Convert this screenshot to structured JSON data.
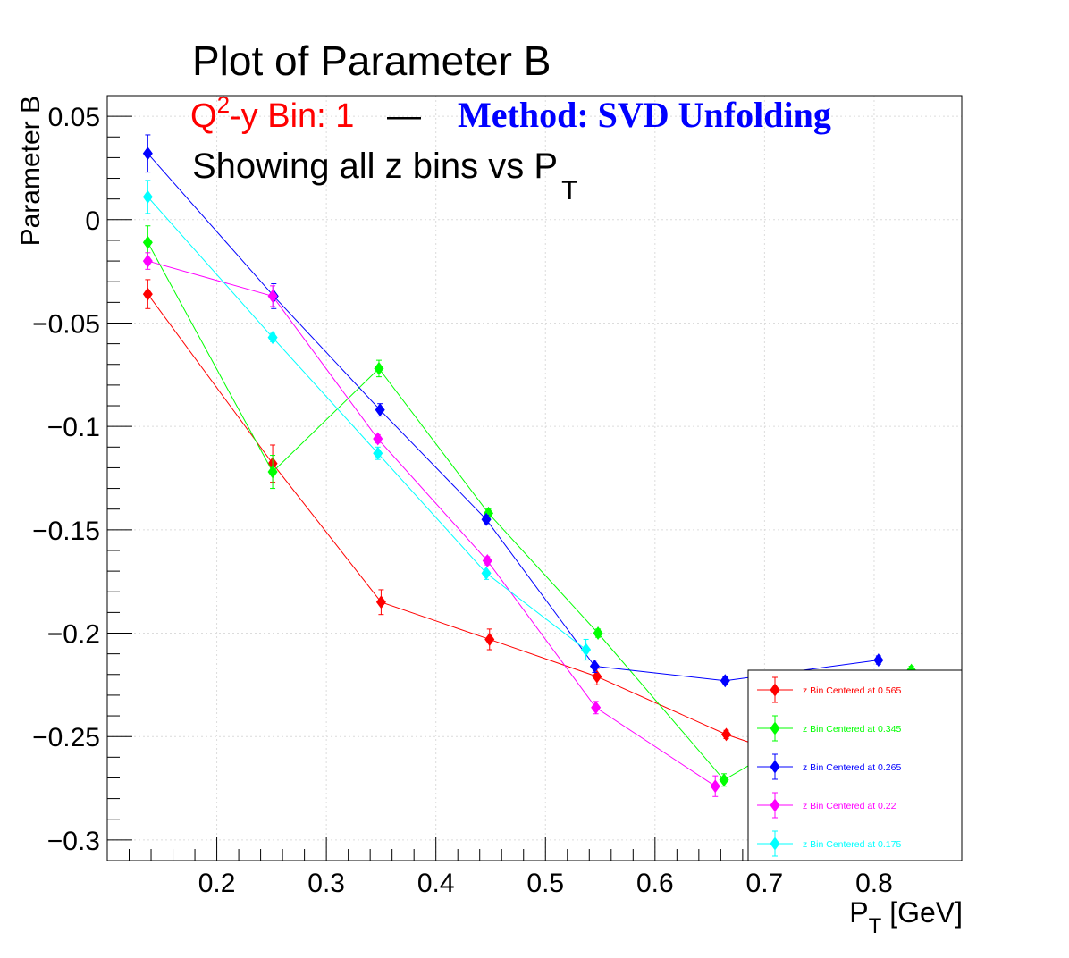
{
  "chart_data": {
    "type": "line",
    "title": "Plot of Parameter B",
    "subtitle_bin_prefix": "Q",
    "subtitle_bin_sup": "2",
    "subtitle_bin_rest": "-y Bin: 1",
    "subtitle_separator": "—",
    "subtitle_method": "Method: SVD Unfolding",
    "subtitle_showing": "Showing all z bins vs P",
    "subtitle_showing_sub": "T",
    "xlabel_main": "P",
    "xlabel_sub": "T",
    "xlabel_unit": " [GeV]",
    "ylabel": "Parameter B",
    "xlim": [
      0.1,
      0.88
    ],
    "ylim": [
      -0.31,
      0.06
    ],
    "xticks": [
      0.2,
      0.3,
      0.4,
      0.5,
      0.6,
      0.7,
      0.8
    ],
    "xtick_labels": [
      "0.2",
      "0.3",
      "0.4",
      "0.5",
      "0.6",
      "0.7",
      "0.8"
    ],
    "yticks": [
      0.05,
      0,
      -0.05,
      -0.1,
      -0.15,
      -0.2,
      -0.25,
      -0.3
    ],
    "ytick_labels": [
      "0.05",
      "0",
      "−0.05",
      "−0.1",
      "−0.15",
      "−0.2",
      "−0.25",
      "−0.3"
    ],
    "grid": true,
    "legend_position": "bottom-right",
    "series": [
      {
        "name": "z Bin Centered at 0.565",
        "color": "#ff0000",
        "x": [
          0.137,
          0.251,
          0.35,
          0.449,
          0.547,
          0.665,
          0.804
        ],
        "y": [
          -0.036,
          -0.118,
          -0.185,
          -0.203,
          -0.221,
          -0.249,
          -0.274
        ],
        "err": [
          0.007,
          0.009,
          0.006,
          0.005,
          0.004,
          0.002,
          0.002
        ]
      },
      {
        "name": "z Bin Centered at 0.345",
        "color": "#00ff00",
        "x": [
          0.137,
          0.251,
          0.348,
          0.448,
          0.548,
          0.663,
          0.834
        ],
        "y": [
          -0.011,
          -0.122,
          -0.072,
          -0.142,
          -0.2,
          -0.271,
          -0.218
        ],
        "err": [
          0.008,
          0.008,
          0.004,
          0.002,
          0.002,
          0.003,
          0.002
        ]
      },
      {
        "name": "z Bin Centered at 0.265",
        "color": "#0000ff",
        "x": [
          0.137,
          0.252,
          0.349,
          0.446,
          0.545,
          0.664,
          0.804
        ],
        "y": [
          0.032,
          -0.037,
          -0.092,
          -0.145,
          -0.216,
          -0.223,
          -0.213
        ],
        "err": [
          0.009,
          0.006,
          0.003,
          0.002,
          0.003,
          0.002,
          0.002
        ]
      },
      {
        "name": "z Bin Centered at 0.22",
        "color": "#ff00ff",
        "x": [
          0.137,
          0.251,
          0.347,
          0.447,
          0.546,
          0.655
        ],
        "y": [
          -0.02,
          -0.037,
          -0.106,
          -0.165,
          -0.236,
          -0.274
        ],
        "err": [
          0.004,
          0.005,
          0.002,
          0.002,
          0.003,
          0.005
        ]
      },
      {
        "name": "z Bin Centered at 0.175",
        "color": "#00ffff",
        "x": [
          0.137,
          0.251,
          0.347,
          0.446,
          0.537
        ],
        "y": [
          0.011,
          -0.057,
          -0.113,
          -0.171,
          -0.208
        ],
        "err": [
          0.008,
          0.002,
          0.003,
          0.003,
          0.005
        ]
      }
    ]
  }
}
